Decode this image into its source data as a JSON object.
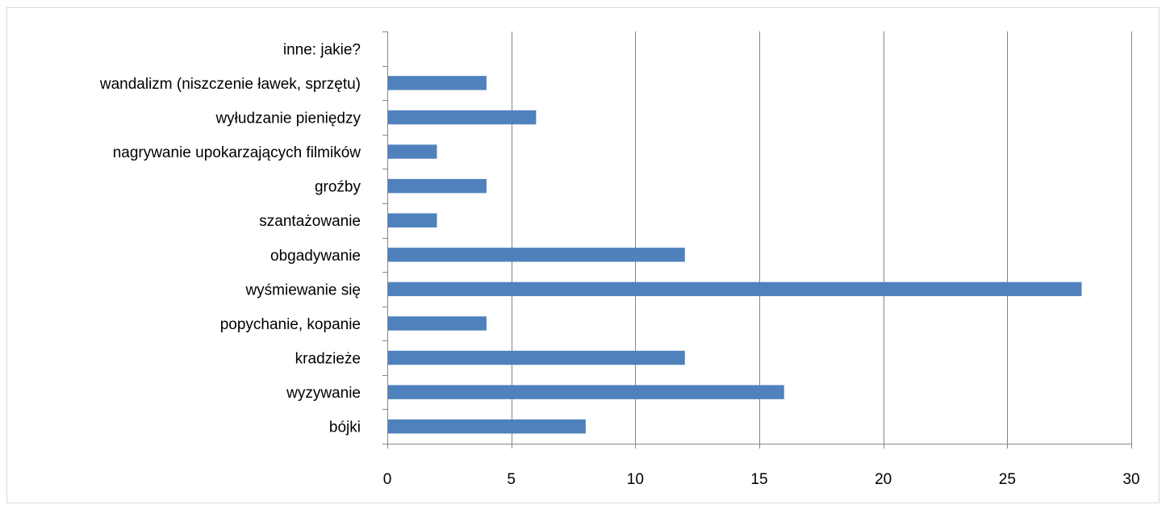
{
  "chart_data": {
    "type": "bar",
    "orientation": "horizontal",
    "title": "",
    "xlabel": "",
    "ylabel": "",
    "categories": [
      "bójki",
      "wyzywanie",
      "kradzieże",
      "popychanie, kopanie",
      "wyśmiewanie się",
      "obgadywanie",
      "szantażowanie",
      "groźby",
      "nagrywanie upokarzających filmików",
      "wyłudzanie pieniędzy",
      "wandalizm (niszczenie ławek, sprzętu)",
      "inne: jakie?"
    ],
    "values": [
      8,
      16,
      12,
      4,
      28,
      12,
      2,
      4,
      2,
      6,
      4,
      0
    ],
    "xlim": [
      0,
      30
    ],
    "xticks": [
      0,
      5,
      10,
      15,
      20,
      25,
      30
    ],
    "grid": "vertical",
    "legend": "none",
    "bar_color": "#4f81bd",
    "grid_color": "#868686"
  }
}
